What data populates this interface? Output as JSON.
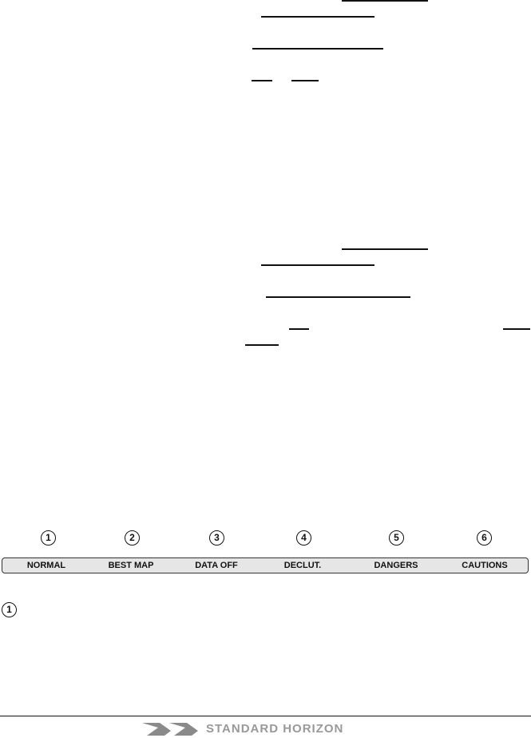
{
  "softkeys": [
    {
      "number": "1",
      "label": "NORMAL"
    },
    {
      "number": "2",
      "label": "BEST MAP"
    },
    {
      "number": "3",
      "label": "DATA OFF"
    },
    {
      "number": "4",
      "label": "DECLUT."
    },
    {
      "number": "5",
      "label": "DANGERS"
    },
    {
      "number": "6",
      "label": "CAUTIONS"
    }
  ],
  "callout": {
    "number": "1"
  },
  "footer": {
    "brand": "STANDARD HORIZON",
    "brand_color": "#999999"
  }
}
